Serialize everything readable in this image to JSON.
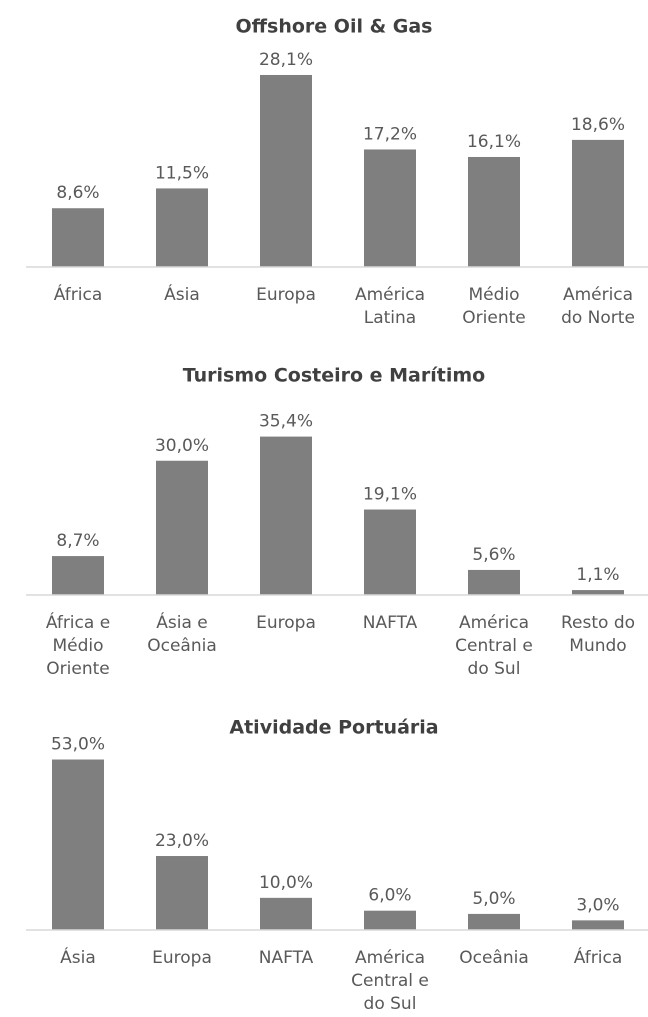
{
  "chart_data": [
    {
      "type": "bar",
      "title": "Offshore Oil & Gas",
      "categories": [
        "África",
        "Ásia",
        "Europa",
        "América\nLatina",
        "Médio\nOriente",
        "América\ndo Norte"
      ],
      "values": [
        8.6,
        11.5,
        28.1,
        17.2,
        16.1,
        18.6
      ],
      "value_labels": [
        "8,6%",
        "11,5%",
        "28,1%",
        "17,2%",
        "16,1%",
        "18,6%"
      ],
      "color": "#7f7f7f",
      "ylim": [
        0,
        30
      ]
    },
    {
      "type": "bar",
      "title": "Turismo Costeiro e Marítimo",
      "categories": [
        "África e\nMédio\nOriente",
        "Ásia e\nOceânia",
        "Europa",
        "NAFTA",
        "América\nCentral e\ndo Sul",
        "Resto do\nMundo"
      ],
      "values": [
        8.7,
        30.0,
        35.4,
        19.1,
        5.6,
        1.1
      ],
      "value_labels": [
        "8,7%",
        "30,0%",
        "35,4%",
        "19,1%",
        "5,6%",
        "1,1%"
      ],
      "color": "#7f7f7f",
      "ylim": [
        0,
        40
      ]
    },
    {
      "type": "bar",
      "title": "Atividade Portuária",
      "categories": [
        "Ásia",
        "Europa",
        "NAFTA",
        "América\nCentral e\ndo Sul",
        "Oceânia",
        "África"
      ],
      "values": [
        53.0,
        23.0,
        10.0,
        6.0,
        5.0,
        3.0
      ],
      "value_labels": [
        "53,0%",
        "23,0%",
        "10,0%",
        "6,0%",
        "5,0%",
        "3,0%"
      ],
      "color": "#7f7f7f",
      "ylim": [
        0,
        60
      ]
    }
  ]
}
